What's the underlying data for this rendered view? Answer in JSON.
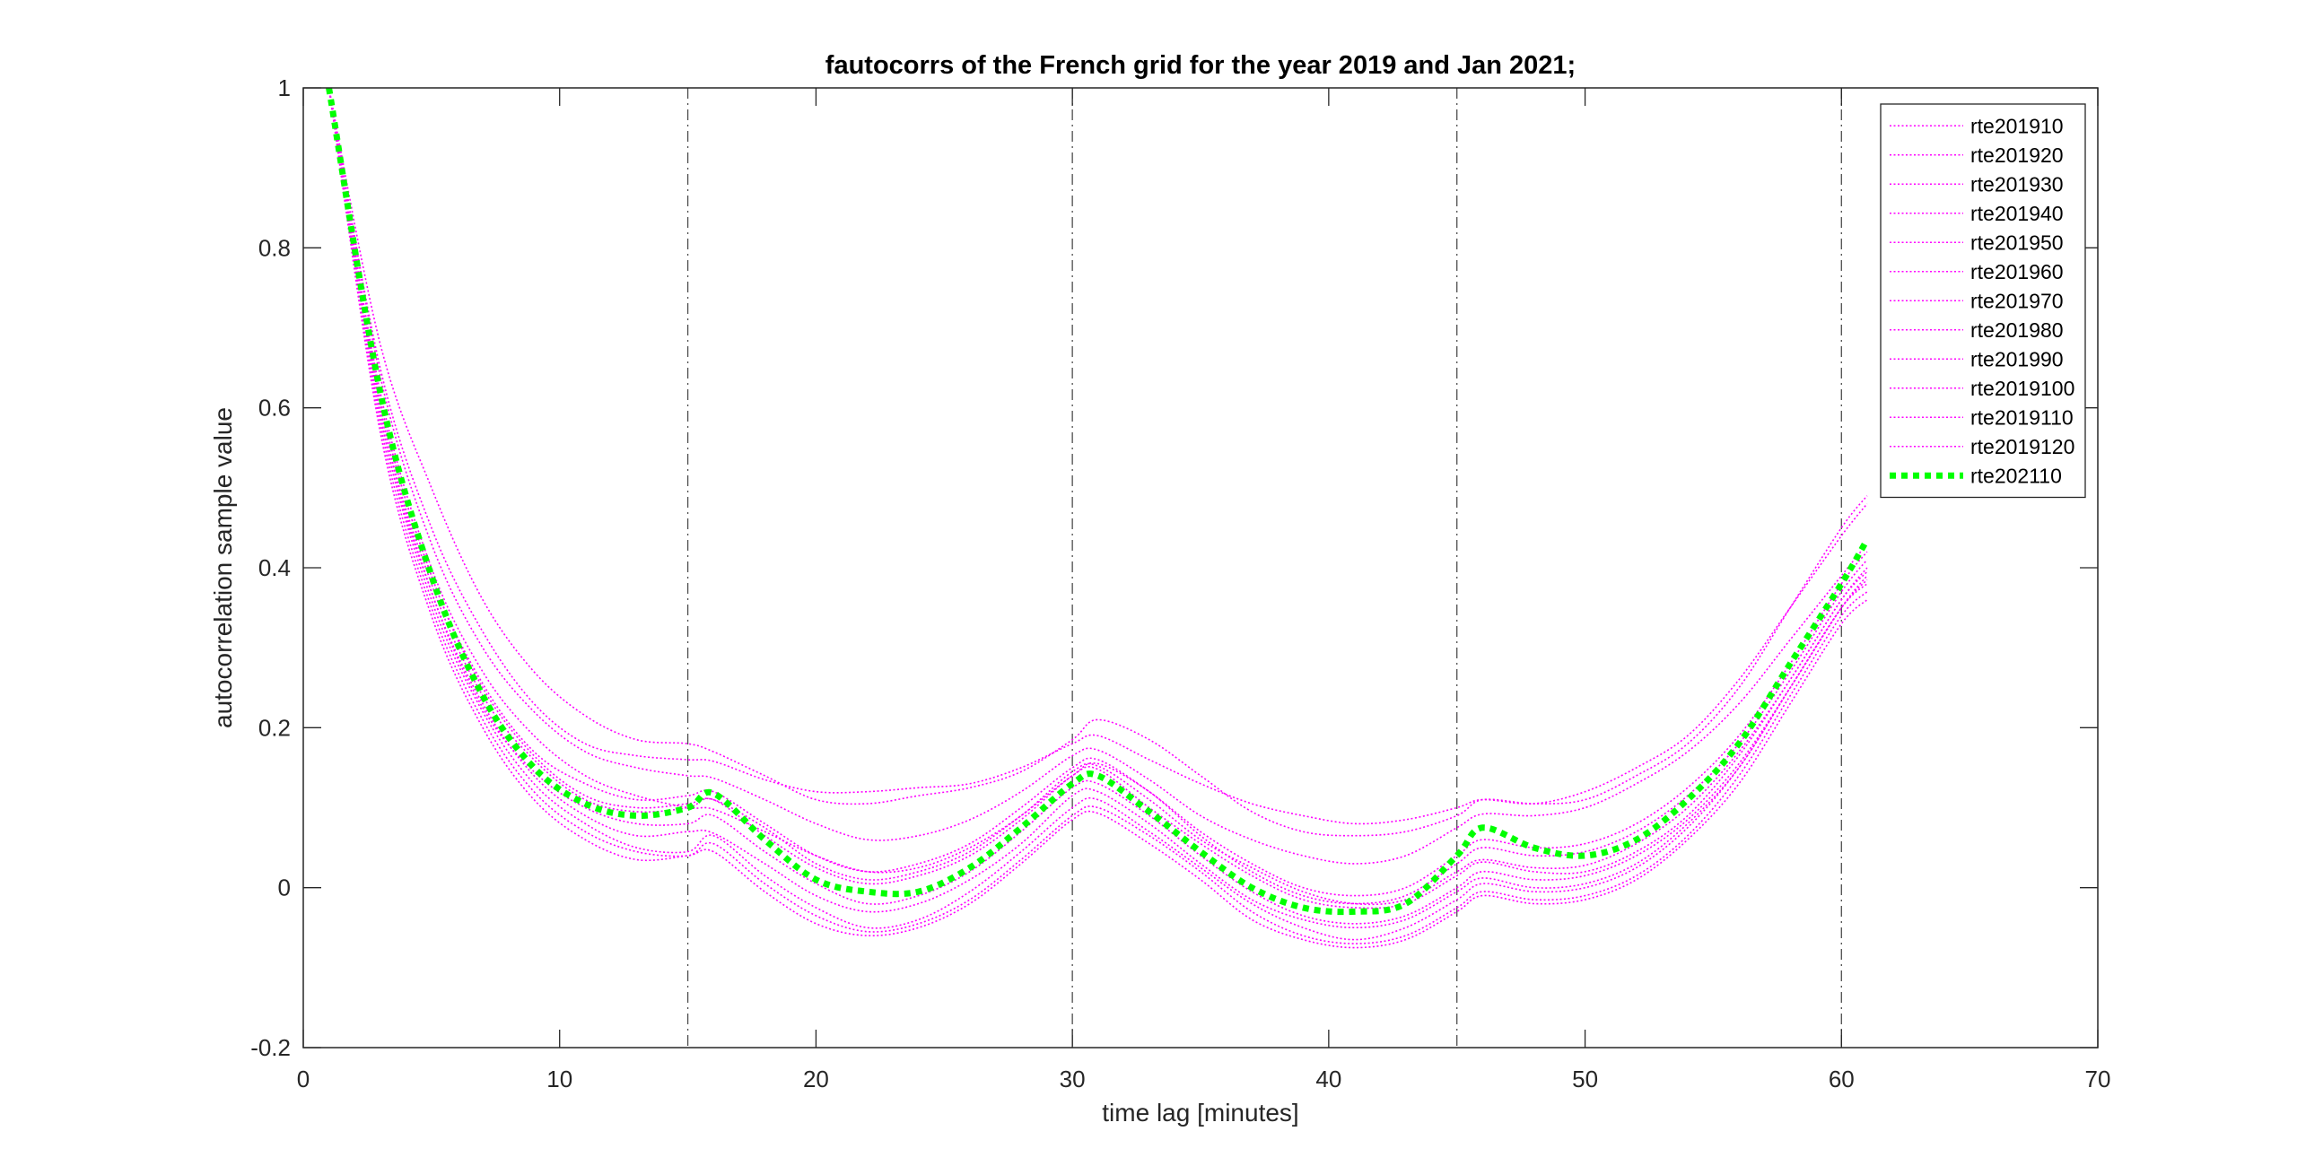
{
  "chart_data": {
    "type": "line",
    "title": "fautocorrs of the French grid for the year 2019 and Jan 2021;",
    "xlabel": "time lag [minutes]",
    "ylabel": "autocorrelation sample value",
    "xlim": [
      0,
      70
    ],
    "ylim": [
      -0.2,
      1
    ],
    "xticks": [
      0,
      10,
      20,
      30,
      40,
      50,
      60,
      70
    ],
    "yticks": [
      -0.2,
      0,
      0.2,
      0.4,
      0.6,
      0.8,
      1
    ],
    "xtick_labels": [
      "0",
      "10",
      "20",
      "30",
      "40",
      "50",
      "60",
      "70"
    ],
    "ytick_labels": [
      "-0.2",
      "0",
      "0.2",
      "0.4",
      "0.6",
      "0.8",
      "1"
    ],
    "grid": false,
    "vertical_reference_lines": [
      15,
      30,
      45,
      60
    ],
    "legend_position": "top-right",
    "colors": {
      "monthly_series": "#ff00ff",
      "jan2021_series": "#00ff00",
      "reference_lines": "#4d4d4d",
      "axes": "#262626"
    },
    "x": [
      1,
      3,
      5,
      7,
      9,
      11,
      13,
      15,
      16,
      18,
      20,
      22,
      24,
      26,
      28,
      30,
      31,
      33,
      35,
      37,
      39,
      41,
      43,
      45,
      46,
      48,
      50,
      52,
      54,
      56,
      58,
      60,
      61
    ],
    "series": [
      {
        "name": "rte201910",
        "values": [
          1.0,
          0.62,
          0.4,
          0.27,
          0.19,
          0.14,
          0.115,
          0.1,
          0.098,
          0.07,
          0.04,
          0.02,
          0.025,
          0.05,
          0.09,
          0.145,
          0.152,
          0.11,
          0.06,
          0.025,
          -0.005,
          -0.02,
          -0.015,
          0.02,
          0.035,
          0.025,
          0.028,
          0.055,
          0.1,
          0.17,
          0.26,
          0.36,
          0.395
        ]
      },
      {
        "name": "rte201920",
        "values": [
          1.0,
          0.64,
          0.43,
          0.3,
          0.22,
          0.17,
          0.15,
          0.14,
          0.137,
          0.11,
          0.08,
          0.06,
          0.065,
          0.085,
          0.12,
          0.165,
          0.172,
          0.135,
          0.09,
          0.06,
          0.04,
          0.03,
          0.04,
          0.075,
          0.092,
          0.09,
          0.1,
          0.13,
          0.17,
          0.23,
          0.31,
          0.39,
          0.43
        ]
      },
      {
        "name": "rte201930",
        "values": [
          1.0,
          0.68,
          0.5,
          0.36,
          0.27,
          0.215,
          0.185,
          0.18,
          0.17,
          0.14,
          0.11,
          0.105,
          0.115,
          0.125,
          0.145,
          0.185,
          0.21,
          0.185,
          0.14,
          0.095,
          0.07,
          0.065,
          0.07,
          0.09,
          0.11,
          0.105,
          0.11,
          0.14,
          0.18,
          0.25,
          0.35,
          0.45,
          0.49
        ]
      },
      {
        "name": "rte201940",
        "values": [
          1.0,
          0.6,
          0.38,
          0.24,
          0.16,
          0.11,
          0.095,
          0.1,
          0.11,
          0.065,
          0.025,
          0.005,
          0.015,
          0.04,
          0.085,
          0.14,
          0.148,
          0.1,
          0.055,
          0.015,
          -0.015,
          -0.025,
          -0.02,
          0.015,
          0.032,
          0.02,
          0.02,
          0.045,
          0.09,
          0.165,
          0.26,
          0.36,
          0.4
        ]
      },
      {
        "name": "rte201950",
        "values": [
          1.0,
          0.59,
          0.37,
          0.23,
          0.14,
          0.09,
          0.065,
          0.07,
          0.068,
          0.03,
          -0.01,
          -0.03,
          -0.02,
          0.01,
          0.055,
          0.115,
          0.12,
          0.08,
          0.03,
          -0.015,
          -0.04,
          -0.05,
          -0.04,
          -0.005,
          0.012,
          0.0,
          0.005,
          0.03,
          0.08,
          0.15,
          0.25,
          0.35,
          0.385
        ]
      },
      {
        "name": "rte201960",
        "values": [
          1.0,
          0.58,
          0.35,
          0.21,
          0.12,
          0.07,
          0.045,
          0.04,
          0.055,
          0.005,
          -0.035,
          -0.055,
          -0.045,
          -0.015,
          0.035,
          0.09,
          0.1,
          0.065,
          0.02,
          -0.03,
          -0.06,
          -0.07,
          -0.06,
          -0.025,
          -0.005,
          -0.015,
          -0.01,
          0.015,
          0.065,
          0.14,
          0.24,
          0.34,
          0.37
        ]
      },
      {
        "name": "rte201970",
        "values": [
          1.0,
          0.59,
          0.36,
          0.22,
          0.13,
          0.08,
          0.05,
          0.045,
          0.065,
          0.015,
          -0.025,
          -0.05,
          -0.04,
          -0.005,
          0.045,
          0.1,
          0.11,
          0.07,
          0.025,
          -0.02,
          -0.05,
          -0.065,
          -0.05,
          -0.015,
          0.005,
          -0.005,
          0.0,
          0.025,
          0.075,
          0.15,
          0.25,
          0.35,
          0.38
        ]
      },
      {
        "name": "rte201980",
        "values": [
          1.0,
          0.61,
          0.39,
          0.25,
          0.165,
          0.115,
          0.1,
          0.105,
          0.11,
          0.075,
          0.03,
          0.01,
          0.02,
          0.045,
          0.09,
          0.14,
          0.155,
          0.12,
          0.065,
          0.02,
          -0.01,
          -0.02,
          -0.01,
          0.03,
          0.05,
          0.04,
          0.045,
          0.07,
          0.115,
          0.18,
          0.27,
          0.37,
          0.41
        ]
      },
      {
        "name": "rte201990",
        "values": [
          1.0,
          0.65,
          0.45,
          0.32,
          0.23,
          0.18,
          0.165,
          0.16,
          0.158,
          0.135,
          0.12,
          0.12,
          0.125,
          0.13,
          0.15,
          0.18,
          0.19,
          0.16,
          0.13,
          0.105,
          0.09,
          0.08,
          0.085,
          0.1,
          0.11,
          0.105,
          0.12,
          0.15,
          0.19,
          0.26,
          0.35,
          0.44,
          0.48
        ]
      },
      {
        "name": "rte2019100",
        "values": [
          1.0,
          0.6,
          0.37,
          0.225,
          0.145,
          0.1,
          0.08,
          0.08,
          0.09,
          0.045,
          0.005,
          -0.02,
          -0.01,
          0.02,
          0.07,
          0.125,
          0.13,
          0.09,
          0.04,
          -0.005,
          -0.035,
          -0.045,
          -0.035,
          0.0,
          0.02,
          0.01,
          0.015,
          0.04,
          0.085,
          0.155,
          0.25,
          0.35,
          0.39
        ]
      },
      {
        "name": "rte2019110",
        "values": [
          1.0,
          0.57,
          0.34,
          0.2,
          0.11,
          0.06,
          0.035,
          0.04,
          0.045,
          -0.005,
          -0.045,
          -0.06,
          -0.05,
          -0.02,
          0.03,
          0.085,
          0.093,
          0.055,
          0.01,
          -0.04,
          -0.065,
          -0.075,
          -0.065,
          -0.03,
          -0.01,
          -0.02,
          -0.015,
          0.01,
          0.06,
          0.13,
          0.23,
          0.33,
          0.36
        ]
      },
      {
        "name": "rte2019120",
        "values": [
          1.0,
          0.61,
          0.39,
          0.255,
          0.17,
          0.13,
          0.11,
          0.115,
          0.12,
          0.08,
          0.04,
          0.02,
          0.03,
          0.055,
          0.1,
          0.15,
          0.16,
          0.12,
          0.07,
          0.03,
          0.0,
          -0.01,
          0.0,
          0.04,
          0.06,
          0.05,
          0.055,
          0.08,
          0.125,
          0.19,
          0.28,
          0.38,
          0.42
        ]
      },
      {
        "name": "rte202110",
        "values": [
          1.0,
          0.62,
          0.39,
          0.24,
          0.15,
          0.105,
          0.09,
          0.1,
          0.118,
          0.06,
          0.01,
          -0.005,
          -0.005,
          0.025,
          0.075,
          0.13,
          0.14,
          0.095,
          0.045,
          0.0,
          -0.025,
          -0.03,
          -0.02,
          0.04,
          0.075,
          0.05,
          0.04,
          0.06,
          0.11,
          0.18,
          0.28,
          0.38,
          0.435
        ]
      }
    ]
  }
}
